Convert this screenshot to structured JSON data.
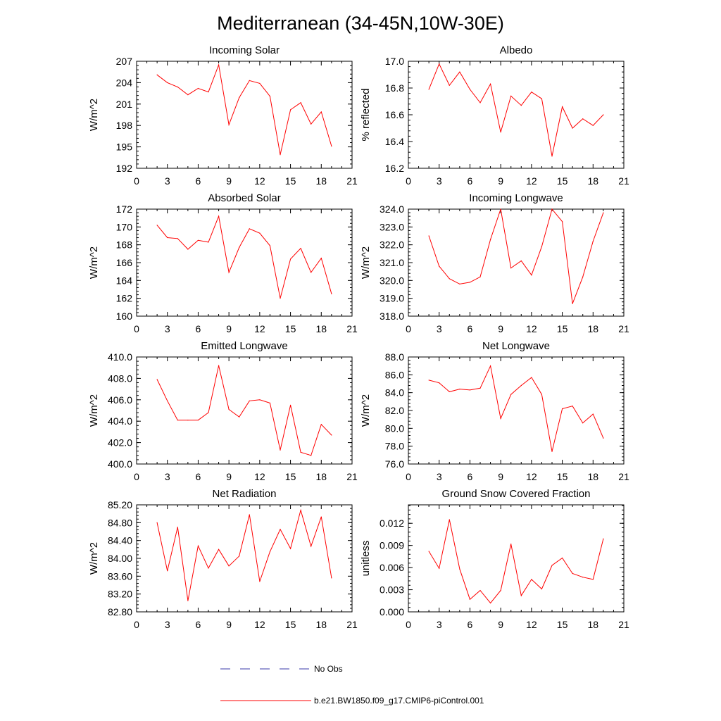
{
  "title": "Mediterranean (34-45N,10W-30E)",
  "legend": {
    "obs_label": "No Obs",
    "obs_color": "#3a3aa8",
    "model_label": "b.e21.BW1850.f09_g17.CMIP6-piControl.001",
    "model_color": "#ff0000"
  },
  "chart_data": [
    {
      "type": "line",
      "title": "Incoming Solar",
      "xlabel": "",
      "ylabel": "W/m^2",
      "xlim": [
        0,
        21
      ],
      "x_ticks": [
        "0",
        "3",
        "6",
        "9",
        "12",
        "15",
        "18",
        "21"
      ],
      "ylim": [
        192,
        207
      ],
      "y_ticks": [
        "192",
        "195",
        "198",
        "201",
        "204",
        "207"
      ],
      "x": [
        2,
        3,
        4,
        5,
        6,
        7,
        8,
        9,
        10,
        11,
        12,
        13,
        14,
        15,
        16,
        17,
        18,
        19
      ],
      "values": [
        205.1,
        204.0,
        203.4,
        202.3,
        203.2,
        202.7,
        206.5,
        198.1,
        201.9,
        204.3,
        203.9,
        202.1,
        193.9,
        200.2,
        201.2,
        198.2,
        199.9,
        195.1
      ]
    },
    {
      "type": "line",
      "title": "Albedo",
      "xlabel": "",
      "ylabel": "% reflected",
      "xlim": [
        0,
        21
      ],
      "x_ticks": [
        "0",
        "3",
        "6",
        "9",
        "12",
        "15",
        "18",
        "21"
      ],
      "ylim": [
        16.2,
        17.0
      ],
      "y_ticks": [
        "16.2",
        "16.4",
        "16.6",
        "16.8",
        "17.0"
      ],
      "x": [
        2,
        3,
        4,
        5,
        6,
        7,
        8,
        9,
        10,
        11,
        12,
        13,
        14,
        15,
        16,
        17,
        18,
        19
      ],
      "values": [
        16.79,
        16.98,
        16.82,
        16.92,
        16.79,
        16.69,
        16.83,
        16.47,
        16.74,
        16.67,
        16.77,
        16.72,
        16.29,
        16.66,
        16.5,
        16.57,
        16.52,
        16.6
      ]
    },
    {
      "type": "line",
      "title": "Absorbed Solar",
      "xlabel": "",
      "ylabel": "W/m^2",
      "xlim": [
        0,
        21
      ],
      "x_ticks": [
        "0",
        "3",
        "6",
        "9",
        "12",
        "15",
        "18",
        "21"
      ],
      "ylim": [
        160,
        172
      ],
      "y_ticks": [
        "160",
        "162",
        "164",
        "166",
        "168",
        "170",
        "172"
      ],
      "x": [
        2,
        3,
        4,
        5,
        6,
        7,
        8,
        9,
        10,
        11,
        12,
        13,
        14,
        15,
        16,
        17,
        18,
        19
      ],
      "values": [
        170.2,
        168.8,
        168.7,
        167.5,
        168.5,
        168.3,
        171.2,
        164.9,
        167.7,
        169.8,
        169.3,
        167.9,
        162.0,
        166.4,
        167.6,
        164.9,
        166.5,
        162.5
      ]
    },
    {
      "type": "line",
      "title": "Incoming Longwave",
      "xlabel": "",
      "ylabel": "W/m^2",
      "xlim": [
        0,
        21
      ],
      "x_ticks": [
        "0",
        "3",
        "6",
        "9",
        "12",
        "15",
        "18",
        "21"
      ],
      "ylim": [
        318.0,
        324.0
      ],
      "y_ticks": [
        "318.0",
        "319.0",
        "320.0",
        "321.0",
        "322.0",
        "323.0",
        "324.0"
      ],
      "x": [
        2,
        3,
        4,
        5,
        6,
        7,
        8,
        9,
        10,
        11,
        12,
        13,
        14,
        15,
        16,
        17,
        18,
        19
      ],
      "values": [
        322.5,
        320.8,
        320.1,
        319.8,
        319.9,
        320.2,
        322.3,
        324.0,
        320.7,
        321.1,
        320.3,
        321.9,
        324.0,
        323.3,
        318.7,
        320.2,
        322.2,
        323.8
      ]
    },
    {
      "type": "line",
      "title": "Emitted Longwave",
      "xlabel": "",
      "ylabel": "W/m^2",
      "xlim": [
        0,
        21
      ],
      "x_ticks": [
        "0",
        "3",
        "6",
        "9",
        "12",
        "15",
        "18",
        "21"
      ],
      "ylim": [
        400.0,
        410.0
      ],
      "y_ticks": [
        "400.0",
        "402.0",
        "404.0",
        "406.0",
        "408.0",
        "410.0"
      ],
      "x": [
        2,
        3,
        4,
        5,
        6,
        7,
        8,
        9,
        10,
        11,
        12,
        13,
        14,
        15,
        16,
        17,
        18,
        19
      ],
      "values": [
        407.9,
        405.9,
        404.1,
        404.1,
        404.1,
        404.8,
        409.2,
        405.1,
        404.4,
        405.9,
        406.0,
        405.7,
        401.3,
        405.5,
        401.1,
        400.8,
        403.7,
        402.7
      ]
    },
    {
      "type": "line",
      "title": "Net Longwave",
      "xlabel": "",
      "ylabel": "W/m^2",
      "xlim": [
        0,
        21
      ],
      "x_ticks": [
        "0",
        "3",
        "6",
        "9",
        "12",
        "15",
        "18",
        "21"
      ],
      "ylim": [
        76.0,
        88.0
      ],
      "y_ticks": [
        "76.0",
        "78.0",
        "80.0",
        "82.0",
        "84.0",
        "86.0",
        "88.0"
      ],
      "x": [
        2,
        3,
        4,
        5,
        6,
        7,
        8,
        9,
        10,
        11,
        12,
        13,
        14,
        15,
        16,
        17,
        18,
        19
      ],
      "values": [
        85.4,
        85.1,
        84.1,
        84.4,
        84.3,
        84.5,
        87.0,
        81.1,
        83.8,
        84.8,
        85.7,
        83.8,
        77.4,
        82.2,
        82.5,
        80.6,
        81.6,
        78.9
      ]
    },
    {
      "type": "line",
      "title": "Net Radiation",
      "xlabel": "",
      "ylabel": "W/m^2",
      "xlim": [
        0,
        21
      ],
      "x_ticks": [
        "0",
        "3",
        "6",
        "9",
        "12",
        "15",
        "18",
        "21"
      ],
      "ylim": [
        82.8,
        85.2
      ],
      "y_ticks": [
        "82.80",
        "83.20",
        "83.60",
        "84.00",
        "84.40",
        "84.80",
        "85.20"
      ],
      "x": [
        2,
        3,
        4,
        5,
        6,
        7,
        8,
        9,
        10,
        11,
        12,
        13,
        14,
        15,
        16,
        17,
        18,
        19
      ],
      "values": [
        84.8,
        83.72,
        84.7,
        83.05,
        84.28,
        83.78,
        84.2,
        83.83,
        84.05,
        84.98,
        83.48,
        84.15,
        84.65,
        84.22,
        85.08,
        84.27,
        84.93,
        83.56
      ]
    },
    {
      "type": "line",
      "title": "Ground Snow Covered Fraction",
      "xlabel": "",
      "ylabel": "unitless",
      "xlim": [
        0,
        21
      ],
      "x_ticks": [
        "0",
        "3",
        "6",
        "9",
        "12",
        "15",
        "18",
        "21"
      ],
      "ylim": [
        0.0,
        0.0145
      ],
      "y_ticks": [
        "0.000",
        "0.003",
        "0.006",
        "0.009",
        "0.012"
      ],
      "x": [
        2,
        3,
        4,
        5,
        6,
        7,
        8,
        9,
        10,
        11,
        12,
        13,
        14,
        15,
        16,
        17,
        18,
        19
      ],
      "values": [
        0.0082,
        0.0059,
        0.0125,
        0.0058,
        0.0017,
        0.0029,
        0.0012,
        0.0029,
        0.0092,
        0.0022,
        0.0044,
        0.0031,
        0.0063,
        0.0073,
        0.0052,
        0.0047,
        0.0044,
        0.0099
      ]
    }
  ]
}
